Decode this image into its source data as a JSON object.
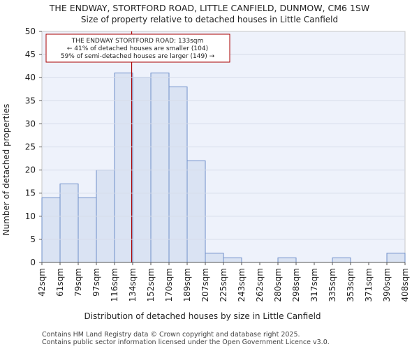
{
  "chart_data": {
    "type": "bar",
    "title": "THE ENDWAY, STORTFORD ROAD, LITTLE CANFIELD, DUNMOW, CM6 1SW",
    "subtitle": "Size of property relative to detached houses in Little Canfield",
    "xlabel": "Distribution of detached houses by size in Little Canfield",
    "ylabel": "Number of detached properties",
    "bin_edges": [
      42,
      61,
      79,
      97,
      116,
      134,
      152,
      170,
      189,
      207,
      225,
      243,
      262,
      280,
      298,
      317,
      335,
      353,
      371,
      390,
      408
    ],
    "tick_labels": [
      "42sqm",
      "61sqm",
      "79sqm",
      "97sqm",
      "116sqm",
      "134sqm",
      "152sqm",
      "170sqm",
      "189sqm",
      "207sqm",
      "225sqm",
      "243sqm",
      "262sqm",
      "280sqm",
      "298sqm",
      "317sqm",
      "335sqm",
      "353sqm",
      "371sqm",
      "390sqm",
      "408sqm"
    ],
    "values": [
      14,
      17,
      14,
      20,
      41,
      40,
      41,
      38,
      22,
      2,
      1,
      0,
      0,
      1,
      0,
      0,
      1,
      0,
      0,
      2
    ],
    "ylim": [
      0,
      50
    ],
    "yticks": [
      0,
      5,
      10,
      15,
      20,
      25,
      30,
      35,
      40,
      45,
      50
    ],
    "marker": {
      "value": 133,
      "color": "#aa0000"
    },
    "annotation": {
      "lines": [
        "THE ENDWAY STORTFORD ROAD: 133sqm",
        "← 41% of detached houses are smaller (104)",
        "59% of semi-detached houses are larger (149) →"
      ]
    },
    "colors": {
      "bar_fill": "#dae3f3",
      "bar_stroke": "#6f8fc9",
      "plot_bg": "#eef2fb"
    }
  },
  "footer": {
    "line1": "Contains HM Land Registry data © Crown copyright and database right 2025.",
    "line2": "Contains public sector information licensed under the Open Government Licence v3.0."
  }
}
